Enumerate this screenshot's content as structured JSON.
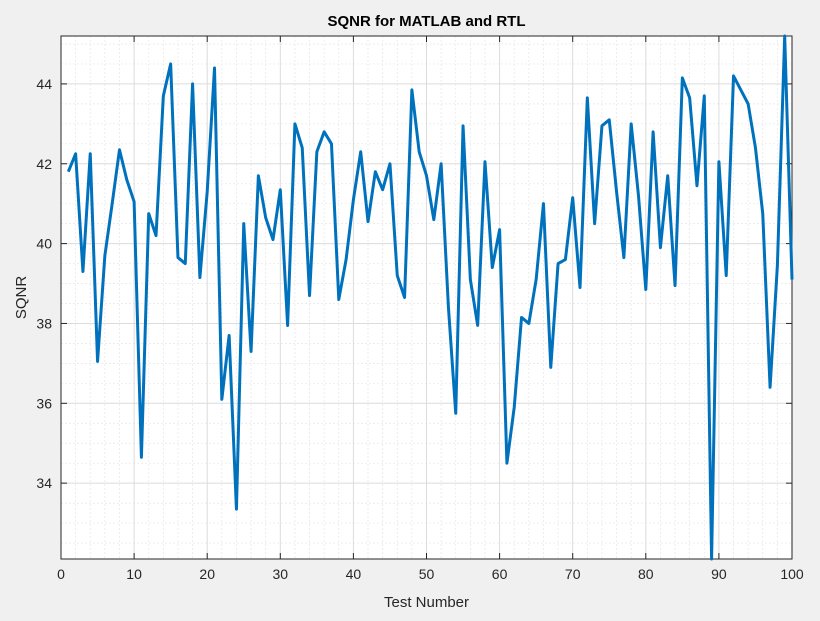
{
  "chart_data": {
    "type": "line",
    "title": "SQNR for MATLAB and RTL",
    "xlabel": "Test Number",
    "ylabel": "SQNR",
    "xlim": [
      0,
      100
    ],
    "ylim": [
      32.1,
      45.2
    ],
    "xticks": [
      0,
      10,
      20,
      30,
      40,
      50,
      60,
      70,
      80,
      90,
      100
    ],
    "yticks": [
      34,
      36,
      38,
      40,
      42,
      44
    ],
    "grid": true,
    "minor_grid": true,
    "series": [
      {
        "color": "#0072bd",
        "x": [
          1,
          2,
          3,
          4,
          5,
          6,
          7,
          8,
          9,
          10,
          11,
          12,
          13,
          14,
          15,
          16,
          17,
          18,
          19,
          20,
          21,
          22,
          23,
          24,
          25,
          26,
          27,
          28,
          29,
          30,
          31,
          32,
          33,
          34,
          35,
          36,
          37,
          38,
          39,
          40,
          41,
          42,
          43,
          44,
          45,
          46,
          47,
          48,
          49,
          50,
          51,
          52,
          53,
          54,
          55,
          56,
          57,
          58,
          59,
          60,
          61,
          62,
          63,
          64,
          65,
          66,
          67,
          68,
          69,
          70,
          71,
          72,
          73,
          74,
          75,
          76,
          77,
          78,
          79,
          80,
          81,
          82,
          83,
          84,
          85,
          86,
          87,
          88,
          89,
          90,
          91,
          92,
          93,
          94,
          95,
          96,
          97,
          98,
          99,
          100
        ],
        "values": [
          41.8,
          42.25,
          39.3,
          42.25,
          37.05,
          39.7,
          41.0,
          42.35,
          41.6,
          41.05,
          34.65,
          40.75,
          40.2,
          43.7,
          44.5,
          39.65,
          39.5,
          44.0,
          39.15,
          41.3,
          44.4,
          36.1,
          37.7,
          33.35,
          40.5,
          37.3,
          41.7,
          40.65,
          40.1,
          41.35,
          37.95,
          43.0,
          42.4,
          38.7,
          42.3,
          42.8,
          42.5,
          38.6,
          39.6,
          41.1,
          42.3,
          40.55,
          41.8,
          41.35,
          42.0,
          39.2,
          38.65,
          43.85,
          42.3,
          41.7,
          40.6,
          42.0,
          38.4,
          35.75,
          42.95,
          39.1,
          37.95,
          42.05,
          39.4,
          40.35,
          34.5,
          35.9,
          38.15,
          38.0,
          39.1,
          41.0,
          36.9,
          39.5,
          39.6,
          41.15,
          38.9,
          43.65,
          40.5,
          42.95,
          43.1,
          41.3,
          39.65,
          43.0,
          41.2,
          38.85,
          42.8,
          39.9,
          41.7,
          38.95,
          44.15,
          43.65,
          41.45,
          43.7,
          32.1,
          42.05,
          39.2,
          44.2,
          43.85,
          43.5,
          42.4,
          40.75,
          36.4,
          39.45,
          45.2,
          39.1
        ]
      }
    ]
  }
}
